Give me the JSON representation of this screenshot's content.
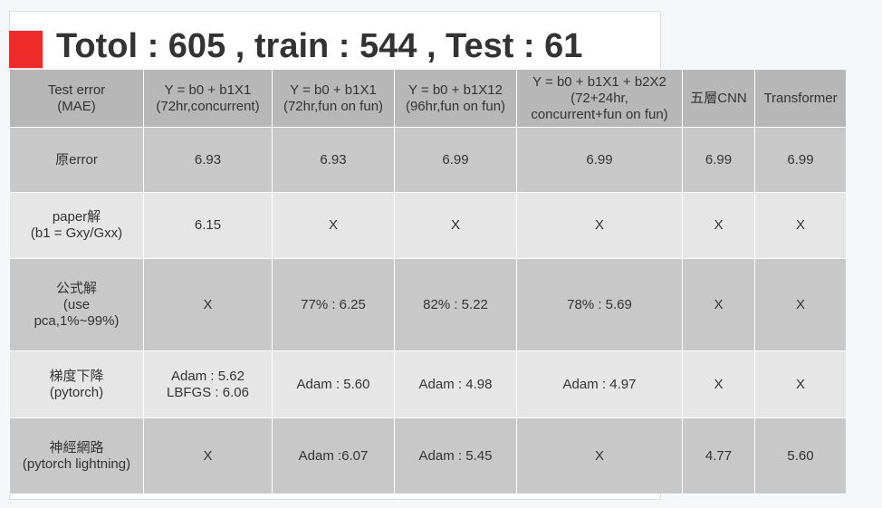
{
  "title": "Totol : 605 , train : 544 , Test : 61",
  "colors": {
    "title_marker": "#ee2a2a",
    "header_bg": "#b7b7b7",
    "row_dark_bg": "#c8c8c8",
    "row_light_bg": "#e6e6e6"
  },
  "table": {
    "columns": [
      [
        "Test error",
        "(MAE)"
      ],
      [
        "Y = b0 + b1X1",
        "(72hr,concurrent)"
      ],
      [
        "Y = b0 + b1X1",
        "(72hr,fun on fun)"
      ],
      [
        "Y = b0 + b1X12",
        "(96hr,fun on fun)"
      ],
      [
        "Y = b0 + b1X1 + b2X2",
        "(72+24hr,",
        "concurrent+fun on fun)"
      ],
      [
        "五層CNN"
      ],
      [
        "Transformer"
      ]
    ],
    "rows": [
      {
        "label": [
          "原error"
        ],
        "cells": [
          [
            "6.93"
          ],
          [
            "6.93"
          ],
          [
            "6.99"
          ],
          [
            "6.99"
          ],
          [
            "6.99"
          ],
          [
            "6.99"
          ]
        ]
      },
      {
        "label": [
          "paper解",
          "(b1 = Gxy/Gxx)"
        ],
        "cells": [
          [
            "6.15"
          ],
          [
            "X"
          ],
          [
            "X"
          ],
          [
            "X"
          ],
          [
            "X"
          ],
          [
            "X"
          ]
        ]
      },
      {
        "label": [
          "公式解",
          "(use",
          "pca,1%~99%)"
        ],
        "cells": [
          [
            "X"
          ],
          [
            "77% : 6.25"
          ],
          [
            "82% : 5.22"
          ],
          [
            "78% : 5.69"
          ],
          [
            "X"
          ],
          [
            "X"
          ]
        ]
      },
      {
        "label": [
          "梯度下降",
          "(pytorch)"
        ],
        "cells": [
          [
            "Adam : 5.62",
            "LBFGS : 6.06"
          ],
          [
            "Adam : 5.60"
          ],
          [
            "Adam : 4.98"
          ],
          [
            "Adam : 4.97"
          ],
          [
            "X"
          ],
          [
            "X"
          ]
        ]
      },
      {
        "label": [
          "神經網路",
          "(pytorch lightning)"
        ],
        "cells": [
          [
            "X"
          ],
          [
            "Adam :6.07"
          ],
          [
            "Adam : 5.45"
          ],
          [
            "X"
          ],
          [
            "4.77"
          ],
          [
            "5.60"
          ]
        ]
      }
    ]
  }
}
